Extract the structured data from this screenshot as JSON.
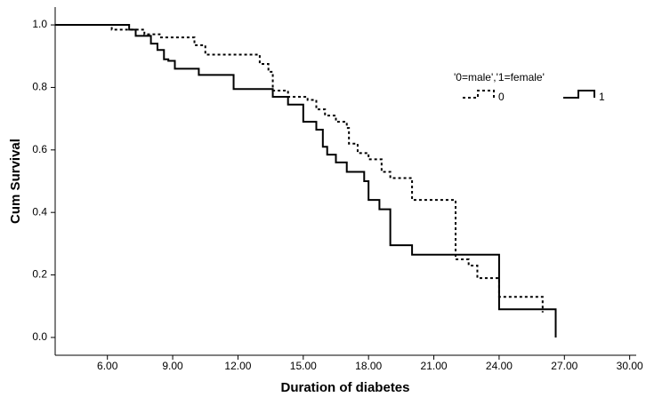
{
  "chart_data": {
    "type": "step",
    "x_label": "Duration of diabetes",
    "y_label": "Cum Survival",
    "legend_title": "'0=male','1=female'",
    "legend_position": "upper right",
    "xlim": [
      3.6,
      30.3
    ],
    "ylim": [
      -0.057,
      1.057
    ],
    "xticks": [
      {
        "value": 6,
        "label": "6.00"
      },
      {
        "value": 9,
        "label": "9.00"
      },
      {
        "value": 12,
        "label": "12.00"
      },
      {
        "value": 15,
        "label": "15.00"
      },
      {
        "value": 18,
        "label": "18.00"
      },
      {
        "value": 21,
        "label": "21.00"
      },
      {
        "value": 24,
        "label": "24.00"
      },
      {
        "value": 27,
        "label": "27.00"
      },
      {
        "value": 30,
        "label": "30.00"
      }
    ],
    "yticks": [
      {
        "value": 0,
        "label": "0.0"
      },
      0.2,
      0.4,
      0.6,
      0.8,
      {
        "value": 1,
        "label": "1.0"
      }
    ],
    "series": [
      {
        "name": "0",
        "color": "#000000",
        "style": "dotted",
        "x": [
          3.6,
          6.2,
          7.7,
          8.4,
          10.0,
          10.5,
          13.0,
          13.4,
          13.6,
          14.3,
          15.2,
          15.6,
          16.0,
          16.5,
          17.0,
          17.1,
          17.5,
          18.0,
          18.6,
          19.0,
          20.0,
          22.0,
          22.6,
          23.0,
          24.0,
          26.0
        ],
        "values": [
          1.0,
          0.985,
          0.97,
          0.96,
          0.935,
          0.905,
          0.875,
          0.85,
          0.79,
          0.77,
          0.76,
          0.73,
          0.71,
          0.69,
          0.67,
          0.62,
          0.59,
          0.57,
          0.53,
          0.51,
          0.44,
          0.25,
          0.23,
          0.19,
          0.13,
          0.08
        ]
      },
      {
        "name": "1",
        "color": "#000000",
        "style": "solid",
        "x": [
          3.6,
          7.0,
          7.3,
          8.0,
          8.3,
          8.6,
          8.8,
          9.1,
          10.2,
          11.8,
          13.6,
          14.3,
          15.0,
          15.6,
          15.9,
          16.1,
          16.5,
          17.0,
          17.8,
          18.0,
          18.5,
          19.0,
          20.0,
          24.0,
          26.6
        ],
        "values": [
          1.0,
          0.985,
          0.965,
          0.94,
          0.92,
          0.89,
          0.885,
          0.86,
          0.84,
          0.795,
          0.77,
          0.745,
          0.69,
          0.665,
          0.61,
          0.585,
          0.56,
          0.53,
          0.5,
          0.44,
          0.41,
          0.295,
          0.265,
          0.09,
          0.0
        ]
      }
    ]
  }
}
